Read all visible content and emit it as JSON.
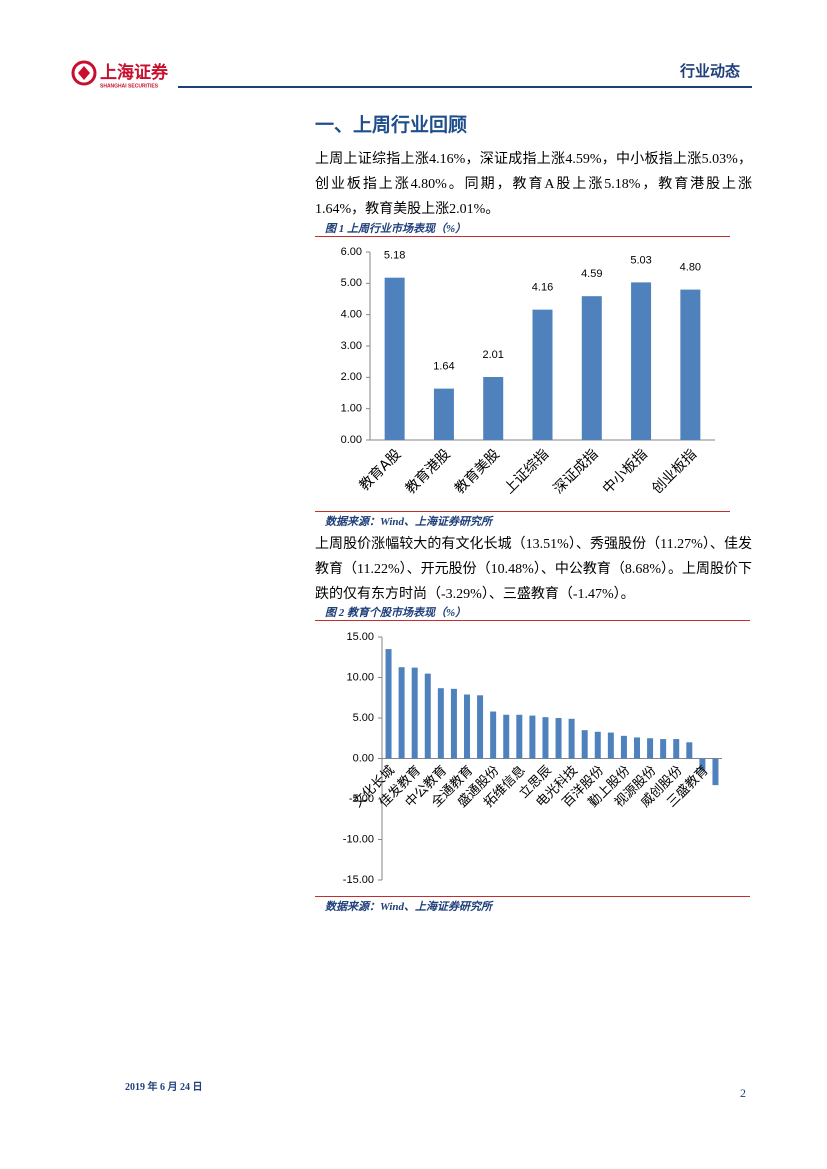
{
  "header": {
    "logo_text": "上海证券",
    "logo_subtext": "SHANGHAI SECURITIES",
    "right_title": "行业动态"
  },
  "section_title": "一、上周行业回顾",
  "paragraphs": [
    "上周上证综指上涨4.16%，深证成指上涨4.59%，中小板指上涨5.03%，创业板指上涨4.80%。同期，教育A股上涨5.18%，教育港股上涨1.64%，教育美股上涨2.01%。",
    "上周股价涨幅较大的有文化长城（13.51%）、秀强股份（11.27%）、佳发教育（11.22%）、开元股份（10.48%）、中公教育（8.68%）。上周股价下跌的仅有东方时尚（-3.29%）、三盛教育（-1.47%）。"
  ],
  "figures": [
    {
      "caption": "图 1  上周行业市场表现（%）",
      "source": "数据来源：Wind、上海证券研究所"
    },
    {
      "caption": "图 2  教育个股市场表现（%）",
      "source": "数据来源：Wind、上海证券研究所"
    }
  ],
  "chart_data": [
    {
      "type": "bar",
      "color": "#4f81bd",
      "categories": [
        "教育A股",
        "教育港股",
        "教育美股",
        "上证综指",
        "深证成指",
        "中小板指",
        "创业板指"
      ],
      "values": [
        5.18,
        1.64,
        2.01,
        4.16,
        4.59,
        5.03,
        4.8
      ],
      "value_labels": [
        "5.18",
        "1.64",
        "2.01",
        "4.16",
        "4.59",
        "5.03",
        "4.80"
      ],
      "ylim": [
        0,
        6
      ],
      "yticks": [
        {
          "value": 0,
          "label": "0.00"
        },
        {
          "value": 1,
          "label": "1.00"
        },
        {
          "value": 2,
          "label": "2.00"
        },
        {
          "value": 3,
          "label": "3.00"
        },
        {
          "value": 4,
          "label": "4.00"
        },
        {
          "value": 5,
          "label": "5.00"
        },
        {
          "value": 6,
          "label": "6.00"
        }
      ],
      "grid": false
    },
    {
      "type": "bar",
      "color": "#4f81bd",
      "categories": [
        "文化长城",
        null,
        "佳发教育",
        null,
        "中公教育",
        null,
        "全通教育",
        null,
        "盛通股份",
        null,
        "拓维信息",
        null,
        "立思辰",
        null,
        "电光科技",
        null,
        "百洋股份",
        null,
        "勤上股份",
        null,
        "视源股份",
        null,
        "威创股份",
        null,
        "三盛教育",
        null
      ],
      "values": [
        13.51,
        11.27,
        11.22,
        10.48,
        8.68,
        8.6,
        7.9,
        7.8,
        5.8,
        5.4,
        5.4,
        5.3,
        5.1,
        5.0,
        4.9,
        3.5,
        3.3,
        3.2,
        2.8,
        2.6,
        2.5,
        2.4,
        2.4,
        2.0,
        -1.47,
        -3.29
      ],
      "ylim": [
        -15,
        15
      ],
      "yticks": [
        {
          "value": -15,
          "label": "-15.00"
        },
        {
          "value": -10,
          "label": "-10.00"
        },
        {
          "value": -5,
          "label": "-5.00"
        },
        {
          "value": 0,
          "label": "0.00"
        },
        {
          "value": 5,
          "label": "5.00"
        },
        {
          "value": 10,
          "label": "10.00"
        },
        {
          "value": 15,
          "label": "15.00"
        }
      ],
      "grid": false
    }
  ],
  "footer": {
    "date": "2019 年 6 月 24 日",
    "page": "2"
  }
}
